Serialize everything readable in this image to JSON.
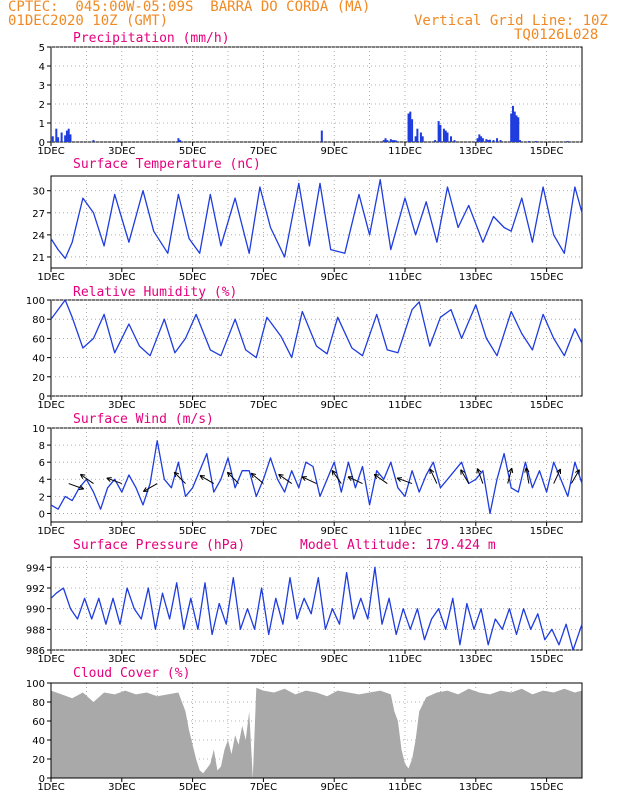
{
  "header": {
    "line1": "CPTEC:  045:00W-05:09S  BARRA DO CORDA (MA)",
    "line2_left": "01DEC2020 10Z (GMT)",
    "line2_right": "Vertical Grid Line: 10Z",
    "line3_right": "TQ0126L028"
  },
  "colors": {
    "accent_text": "#f08a24",
    "panel_title": "#e5007d",
    "series": "#1f3cde",
    "cloud": "#a9a9a9",
    "grid": "#9a9a9a"
  },
  "x_axis": {
    "ticks": [
      "1DEC",
      "3DEC",
      "5DEC",
      "7DEC",
      "9DEC",
      "11DEC",
      "13DEC",
      "15DEC"
    ],
    "tick_days": [
      0,
      2,
      4,
      6,
      8,
      10,
      12,
      14
    ],
    "range_days": [
      0,
      15
    ]
  },
  "chart_data": [
    {
      "type": "bar",
      "title": "Precipitation (mm/h)",
      "ylim": [
        0,
        5
      ],
      "yticks": [
        0,
        1,
        2,
        3,
        4,
        5
      ],
      "x": [
        0.05,
        0.15,
        0.2,
        0.3,
        0.4,
        0.45,
        0.5,
        0.55,
        1.2,
        3.6,
        3.65,
        7.65,
        9.4,
        9.45,
        9.5,
        9.6,
        9.65,
        9.7,
        9.75,
        10.1,
        10.15,
        10.2,
        10.3,
        10.35,
        10.45,
        10.5,
        10.85,
        10.95,
        11.0,
        11.1,
        11.15,
        11.2,
        11.3,
        11.4,
        12.05,
        12.1,
        12.15,
        12.2,
        12.3,
        12.35,
        12.4,
        12.5,
        12.6,
        12.7,
        13.0,
        13.05,
        13.1,
        13.15,
        13.2,
        13.25,
        13.5,
        13.7,
        14.6
      ],
      "values": [
        0.3,
        0.7,
        0.25,
        0.5,
        0.35,
        0.6,
        0.7,
        0.4,
        0.1,
        0.2,
        0.1,
        0.6,
        0.1,
        0.2,
        0.1,
        0.15,
        0.1,
        0.1,
        0.08,
        1.5,
        1.6,
        1.2,
        0.3,
        0.7,
        0.5,
        0.3,
        0.1,
        1.1,
        0.9,
        0.7,
        0.6,
        0.5,
        0.3,
        0.1,
        0.2,
        0.4,
        0.3,
        0.2,
        0.15,
        0.1,
        0.12,
        0.1,
        0.2,
        0.1,
        1.5,
        1.9,
        1.6,
        1.4,
        1.3,
        0.1,
        0.05,
        0.05,
        0.05
      ]
    },
    {
      "type": "line",
      "title": "Surface Temperature (nC)",
      "ylim": [
        19.5,
        32
      ],
      "yticks": [
        21,
        24,
        27,
        30
      ],
      "x": [
        0,
        0.2,
        0.4,
        0.6,
        0.9,
        1.2,
        1.5,
        1.8,
        2.2,
        2.6,
        2.9,
        3.3,
        3.6,
        3.9,
        4.2,
        4.5,
        4.8,
        5.2,
        5.6,
        5.9,
        6.2,
        6.6,
        7.0,
        7.3,
        7.6,
        7.9,
        8.3,
        8.7,
        9.0,
        9.3,
        9.6,
        10.0,
        10.3,
        10.6,
        10.9,
        11.2,
        11.5,
        11.8,
        12.2,
        12.5,
        12.8,
        13.0,
        13.3,
        13.6,
        13.9,
        14.2,
        14.5,
        14.8,
        15.0
      ],
      "values": [
        23.5,
        22,
        20.8,
        23,
        29,
        27,
        22.5,
        29.5,
        23,
        30,
        24.5,
        21.5,
        29.5,
        23.5,
        21.5,
        29.5,
        22.5,
        29,
        21.5,
        30.5,
        25,
        21,
        31,
        22.5,
        31,
        22,
        21.5,
        29.5,
        24,
        31.5,
        22,
        29,
        24,
        28.5,
        23,
        30.5,
        25,
        28,
        23,
        26.5,
        25,
        24.5,
        29,
        23,
        30.5,
        24,
        21.5,
        30.5,
        27
      ]
    },
    {
      "type": "line",
      "title": "Relative Humidity (%)",
      "ylim": [
        0,
        100
      ],
      "yticks": [
        0,
        20,
        40,
        60,
        80,
        100
      ],
      "x": [
        0,
        0.2,
        0.4,
        0.6,
        0.9,
        1.2,
        1.5,
        1.8,
        2.2,
        2.5,
        2.8,
        3.2,
        3.5,
        3.8,
        4.1,
        4.5,
        4.8,
        5.2,
        5.5,
        5.8,
        6.1,
        6.5,
        6.8,
        7.1,
        7.5,
        7.8,
        8.1,
        8.5,
        8.8,
        9.2,
        9.5,
        9.8,
        10.2,
        10.4,
        10.7,
        11.0,
        11.3,
        11.6,
        12.0,
        12.3,
        12.6,
        13.0,
        13.3,
        13.6,
        13.9,
        14.2,
        14.5,
        14.8,
        15.0
      ],
      "values": [
        80,
        90,
        100,
        82,
        50,
        60,
        85,
        45,
        75,
        52,
        42,
        80,
        45,
        60,
        85,
        48,
        42,
        80,
        48,
        40,
        82,
        62,
        40,
        88,
        52,
        44,
        82,
        50,
        42,
        85,
        48,
        45,
        90,
        98,
        52,
        82,
        90,
        60,
        95,
        60,
        42,
        88,
        65,
        48,
        85,
        60,
        42,
        70,
        55
      ]
    },
    {
      "type": "line",
      "title": "Surface Wind (m/s)",
      "ylim": [
        -1,
        10
      ],
      "yticks": [
        0,
        2,
        4,
        6,
        8,
        10
      ],
      "x": [
        0,
        0.2,
        0.4,
        0.6,
        0.8,
        1.0,
        1.2,
        1.4,
        1.6,
        1.8,
        2.0,
        2.2,
        2.4,
        2.6,
        2.8,
        3.0,
        3.2,
        3.4,
        3.6,
        3.8,
        4.0,
        4.2,
        4.4,
        4.6,
        4.8,
        5.0,
        5.2,
        5.4,
        5.6,
        5.8,
        6.0,
        6.2,
        6.4,
        6.6,
        6.8,
        7.0,
        7.2,
        7.4,
        7.6,
        7.8,
        8.0,
        8.2,
        8.4,
        8.6,
        8.8,
        9.0,
        9.2,
        9.4,
        9.6,
        9.8,
        10.0,
        10.2,
        10.4,
        10.6,
        10.8,
        11.0,
        11.2,
        11.4,
        11.6,
        11.8,
        12.0,
        12.2,
        12.4,
        12.6,
        12.8,
        13.0,
        13.2,
        13.4,
        13.6,
        13.8,
        14.0,
        14.2,
        14.4,
        14.6,
        14.8,
        15.0
      ],
      "values": [
        1,
        0.5,
        2,
        1.5,
        3,
        4,
        2.5,
        0.5,
        3,
        4,
        2.5,
        4.5,
        3,
        1,
        3.5,
        8.5,
        4,
        3,
        6,
        2,
        3,
        5,
        7,
        2.5,
        4,
        6.5,
        3,
        5,
        5,
        2,
        4,
        6.5,
        4,
        2.5,
        5,
        3,
        6,
        5.5,
        2,
        4,
        6,
        2.5,
        6,
        3,
        5.5,
        1,
        5,
        4,
        6,
        3,
        2,
        5,
        2.5,
        4.5,
        6,
        3,
        4,
        5,
        6,
        3.5,
        4,
        5,
        0,
        4,
        7,
        3,
        2.5,
        6,
        3,
        5,
        2.5,
        6,
        4,
        2,
        6,
        3.5
      ],
      "wind_arrows": [
        {
          "x": 0.5,
          "dir_deg": 20
        },
        {
          "x": 1.2,
          "dir_deg": 215
        },
        {
          "x": 2.0,
          "dir_deg": 200
        },
        {
          "x": 3.0,
          "dir_deg": 150
        },
        {
          "x": 3.8,
          "dir_deg": 225
        },
        {
          "x": 4.6,
          "dir_deg": 210
        },
        {
          "x": 5.3,
          "dir_deg": 225
        },
        {
          "x": 6.0,
          "dir_deg": 220
        },
        {
          "x": 6.8,
          "dir_deg": 215
        },
        {
          "x": 7.5,
          "dir_deg": 205
        },
        {
          "x": 8.2,
          "dir_deg": 235
        },
        {
          "x": 8.8,
          "dir_deg": 205
        },
        {
          "x": 9.5,
          "dir_deg": 215
        },
        {
          "x": 10.2,
          "dir_deg": 200
        },
        {
          "x": 10.9,
          "dir_deg": 245
        },
        {
          "x": 11.8,
          "dir_deg": 240
        },
        {
          "x": 12.2,
          "dir_deg": 250
        },
        {
          "x": 12.9,
          "dir_deg": 285
        },
        {
          "x": 13.5,
          "dir_deg": 260
        },
        {
          "x": 14.2,
          "dir_deg": 295
        },
        {
          "x": 14.7,
          "dir_deg": 300
        }
      ]
    },
    {
      "type": "line",
      "title": "Surface Pressure (hPa)",
      "subtitle": "Model Altitude: 179.424 m",
      "ylim": [
        986,
        995
      ],
      "yticks": [
        986,
        988,
        990,
        992,
        994
      ],
      "x": [
        0,
        0.15,
        0.35,
        0.55,
        0.75,
        0.95,
        1.15,
        1.35,
        1.55,
        1.75,
        1.95,
        2.15,
        2.35,
        2.55,
        2.75,
        2.95,
        3.15,
        3.35,
        3.55,
        3.75,
        3.95,
        4.15,
        4.35,
        4.55,
        4.75,
        4.95,
        5.15,
        5.35,
        5.55,
        5.75,
        5.95,
        6.15,
        6.35,
        6.55,
        6.75,
        6.95,
        7.15,
        7.35,
        7.55,
        7.75,
        7.95,
        8.15,
        8.35,
        8.55,
        8.75,
        8.95,
        9.15,
        9.35,
        9.55,
        9.75,
        9.95,
        10.15,
        10.35,
        10.55,
        10.75,
        10.95,
        11.15,
        11.35,
        11.55,
        11.75,
        11.95,
        12.15,
        12.35,
        12.55,
        12.75,
        12.95,
        13.15,
        13.35,
        13.55,
        13.75,
        13.95,
        14.15,
        14.35,
        14.55,
        14.75,
        15.0
      ],
      "values": [
        991,
        991.5,
        992,
        990,
        989,
        991,
        989,
        991,
        988.5,
        991,
        988.5,
        992,
        990,
        989,
        992,
        988,
        991.5,
        989,
        992.5,
        988,
        991,
        988,
        992.5,
        987.5,
        990.5,
        988.5,
        993,
        988,
        990,
        988,
        992,
        987.5,
        991,
        988.5,
        993,
        989,
        991,
        989.5,
        993,
        988,
        990,
        988.5,
        993.5,
        989,
        991,
        989,
        994,
        988.5,
        991,
        987.5,
        990,
        988,
        990,
        987,
        989,
        990,
        988,
        991,
        986.5,
        990.5,
        988,
        990,
        986.5,
        989,
        988,
        990,
        987.5,
        990,
        988,
        989.5,
        987,
        988,
        986.5,
        988.5,
        986,
        988.5
      ]
    },
    {
      "type": "area",
      "title": "Cloud Cover (%)",
      "ylim": [
        0,
        100
      ],
      "yticks": [
        0,
        20,
        40,
        60,
        80,
        100
      ],
      "x": [
        0,
        0.3,
        0.6,
        0.9,
        1.2,
        1.5,
        1.8,
        2.1,
        2.4,
        2.7,
        3.0,
        3.3,
        3.6,
        3.8,
        3.9,
        4.0,
        4.1,
        4.2,
        4.3,
        4.4,
        4.5,
        4.6,
        4.7,
        4.8,
        4.9,
        5.0,
        5.1,
        5.2,
        5.3,
        5.4,
        5.5,
        5.6,
        5.7,
        5.8,
        6.0,
        6.3,
        6.6,
        6.9,
        7.2,
        7.5,
        7.8,
        8.1,
        8.4,
        8.7,
        9.0,
        9.3,
        9.6,
        9.7,
        9.8,
        9.9,
        10.0,
        10.1,
        10.2,
        10.3,
        10.4,
        10.6,
        10.9,
        11.2,
        11.5,
        11.8,
        12.1,
        12.4,
        12.7,
        13.0,
        13.3,
        13.6,
        13.9,
        14.2,
        14.5,
        14.8,
        15.0
      ],
      "values": [
        92,
        88,
        84,
        90,
        80,
        90,
        88,
        92,
        88,
        90,
        86,
        88,
        90,
        70,
        50,
        35,
        20,
        8,
        5,
        10,
        15,
        30,
        8,
        12,
        30,
        40,
        25,
        45,
        35,
        55,
        40,
        70,
        0,
        95,
        92,
        90,
        94,
        88,
        92,
        90,
        86,
        92,
        90,
        88,
        90,
        92,
        88,
        70,
        60,
        30,
        15,
        10,
        20,
        40,
        70,
        85,
        90,
        92,
        88,
        94,
        90,
        88,
        92,
        90,
        94,
        88,
        92,
        90,
        94,
        90,
        92
      ]
    }
  ]
}
